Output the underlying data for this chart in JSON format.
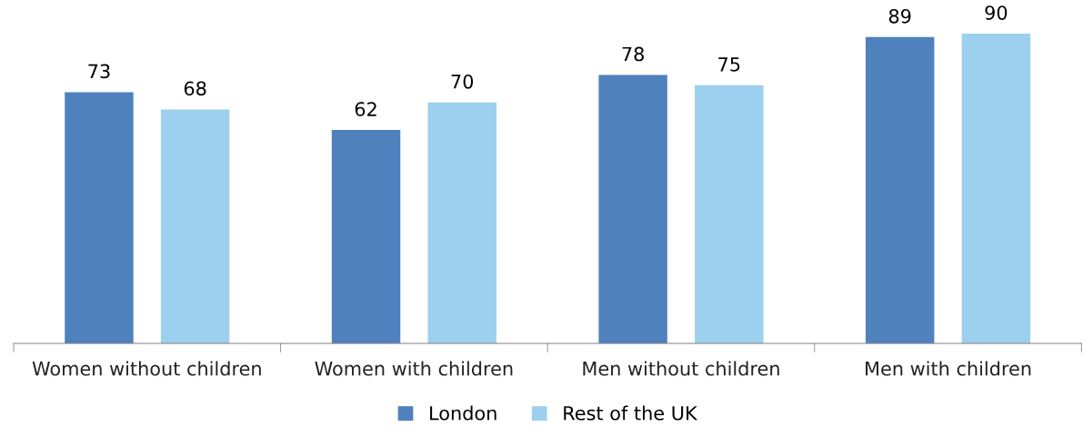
{
  "chart_data": {
    "type": "bar",
    "categories": [
      "Women without children",
      "Women with children",
      "Men without children",
      "Men with children"
    ],
    "series": [
      {
        "name": "London",
        "color": "#4f81bd",
        "values": [
          73,
          62,
          78,
          89
        ]
      },
      {
        "name": "Rest of the UK",
        "color": "#9dd0ee",
        "values": [
          68,
          70,
          75,
          90
        ]
      }
    ],
    "tick_labels": "x",
    "data_labels": true,
    "grid": false,
    "legend": "bottom"
  }
}
